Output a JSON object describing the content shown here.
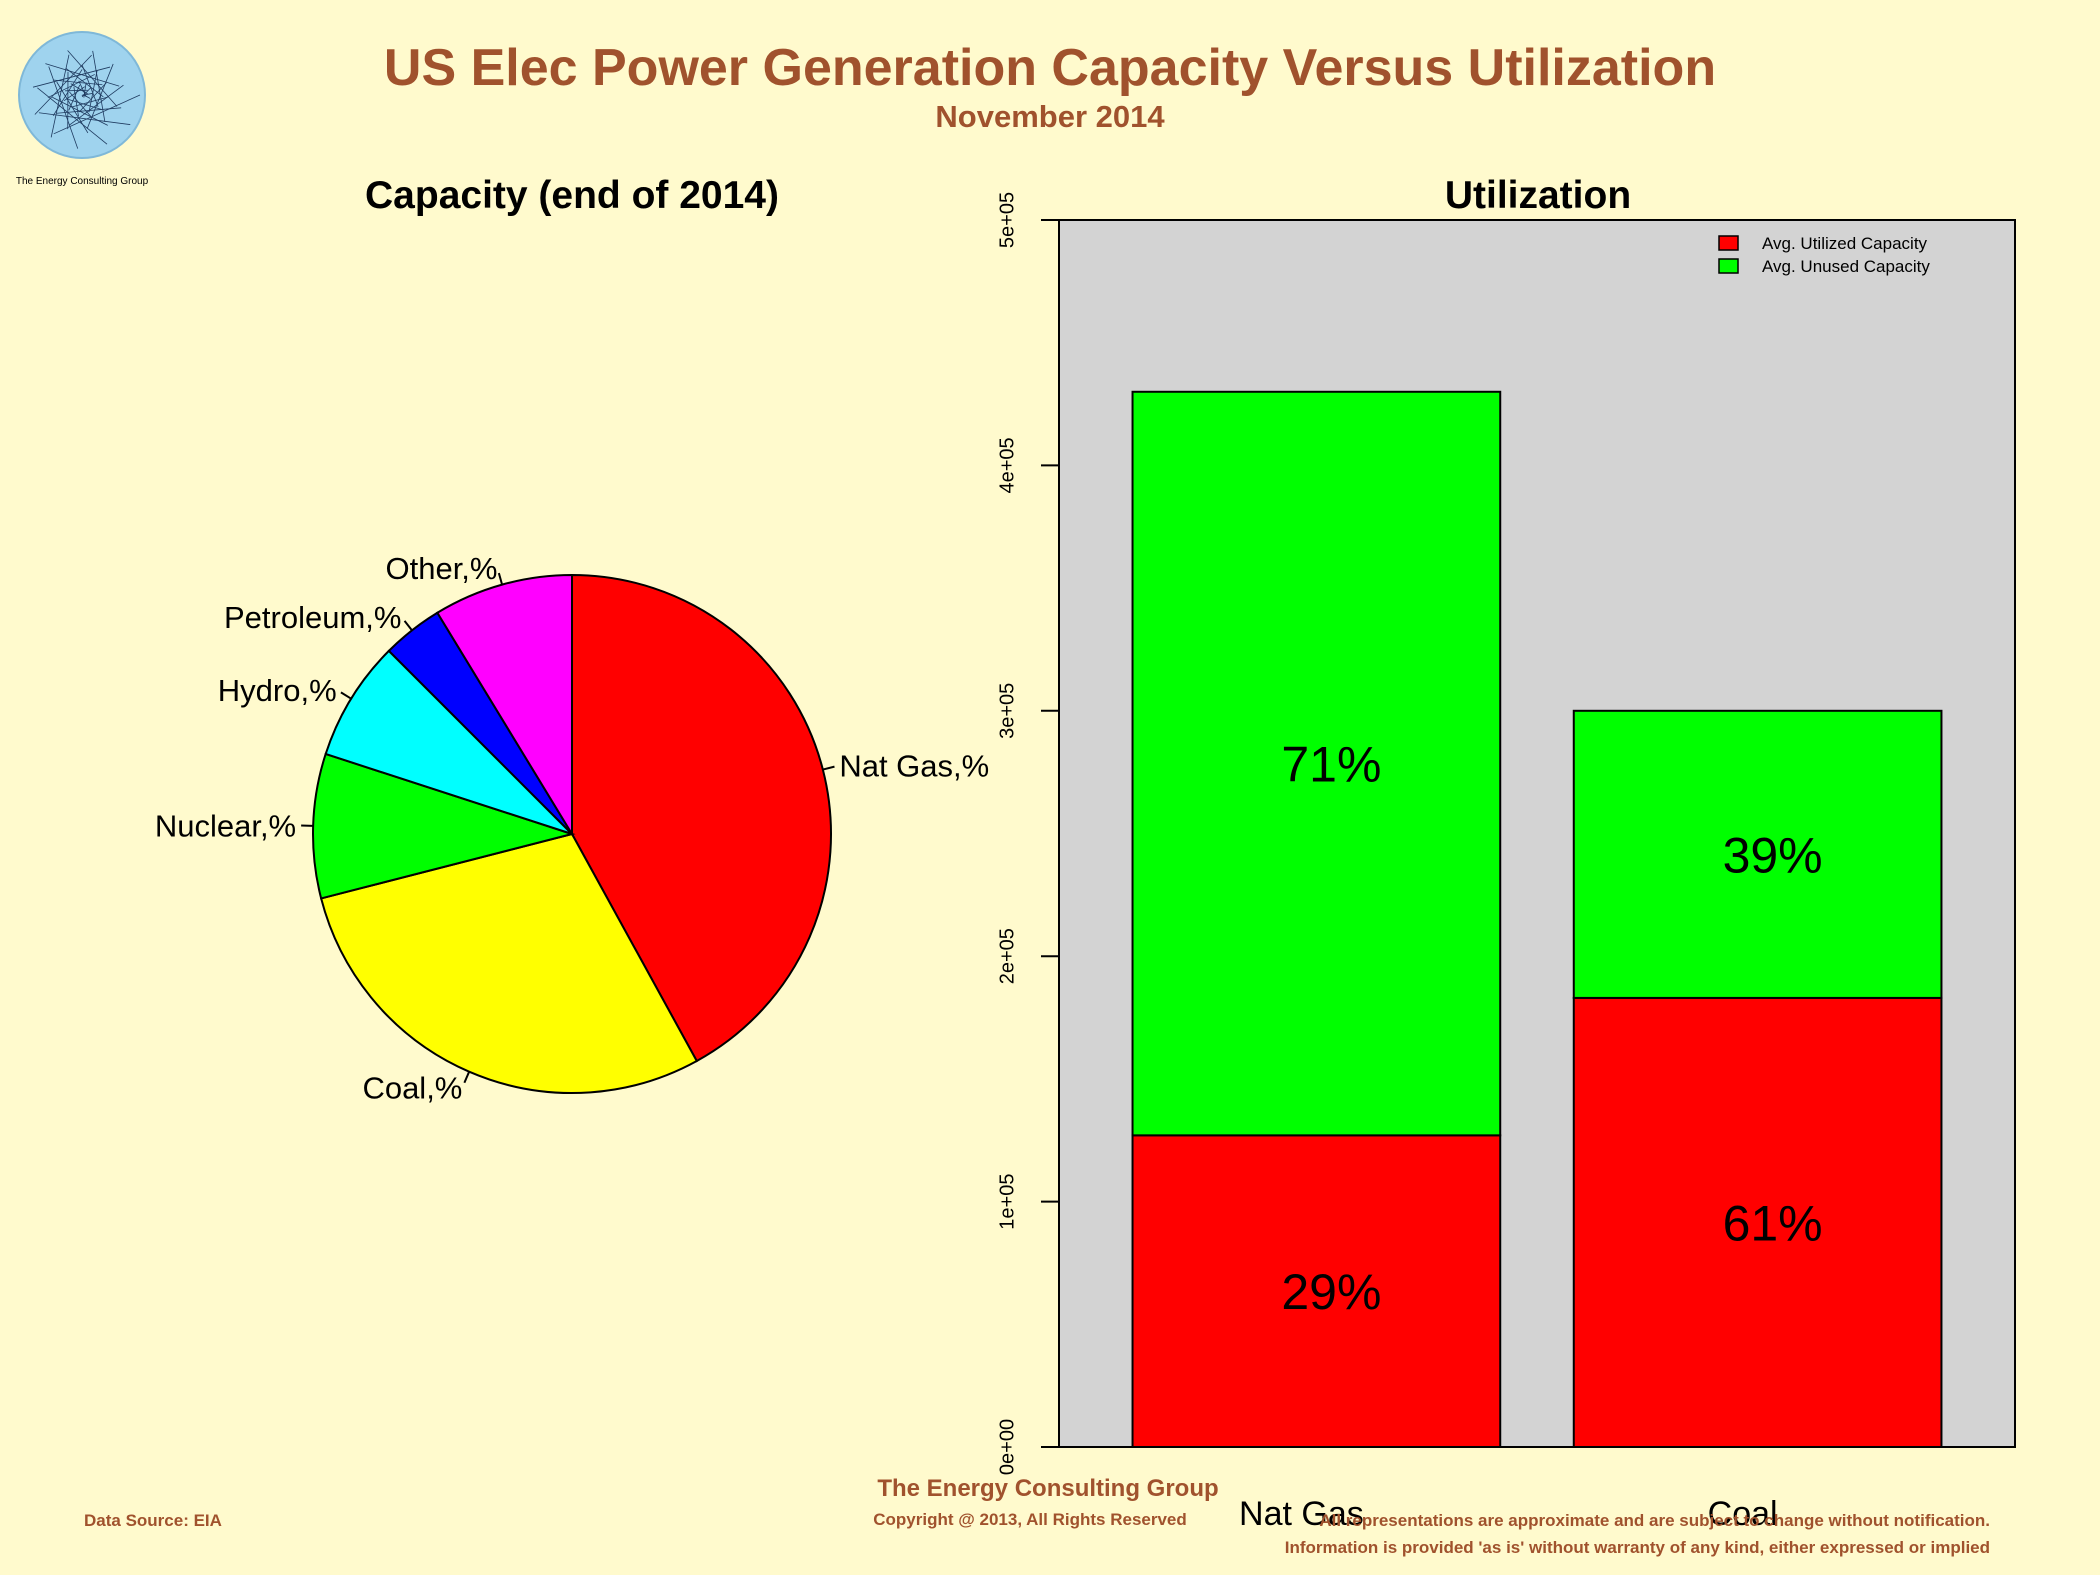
{
  "header": {
    "title": "US Elec Power Generation Capacity Versus Utilization",
    "subtitle": "November 2014",
    "logo_text": "The Energy Consulting Group"
  },
  "footer": {
    "data_source": "Data Source: EIA",
    "company": "The Energy Consulting Group",
    "copyright": "Copyright @ 2013, All Rights Reserved",
    "disclaimer_line1": "All representations are approximate and are subject to change without notification.",
    "disclaimer_line2": "Information is provided 'as is' without warranty of any kind, either expressed or implied"
  },
  "colors": {
    "background": "#FFFACD",
    "title": "#A0522D",
    "plot_bg": "#D3D3D3",
    "utilized": "#FF0000",
    "unused": "#00FF00"
  },
  "chart_data": [
    {
      "type": "pie",
      "title": "Capacity (end of 2014)",
      "categories": [
        "Nat Gas,%",
        "Coal,%",
        "Nuclear,%",
        "Hydro,%",
        "Petroleum,%",
        "Other,%"
      ],
      "values": [
        42,
        29,
        9,
        7.5,
        3.8,
        8.7
      ],
      "colors": [
        "#FF0000",
        "#FFFF00",
        "#00FF00",
        "#00FFFF",
        "#0000FF",
        "#FF00FF"
      ],
      "direction": "clockwise",
      "start": "12 o'clock"
    },
    {
      "type": "bar",
      "stacked": true,
      "title": "Utilization",
      "categories": [
        "Nat Gas",
        "Coal"
      ],
      "series": [
        {
          "name": "Avg. Utilized Capacity",
          "values": [
            127000,
            183000
          ],
          "labels": [
            "29%",
            "61%"
          ],
          "color": "#FF0000"
        },
        {
          "name": "Avg. Unused Capacity",
          "values": [
            303000,
            117000
          ],
          "labels": [
            "71%",
            "39%"
          ],
          "color": "#00FF00"
        }
      ],
      "ylim": [
        0,
        500000
      ],
      "yticks": [
        0,
        100000,
        200000,
        300000,
        400000,
        500000
      ],
      "ytick_labels": [
        "0e+00",
        "1e+05",
        "2e+05",
        "3e+05",
        "4e+05",
        "5e+05"
      ],
      "legend_position": "top-right",
      "grid": false
    }
  ]
}
